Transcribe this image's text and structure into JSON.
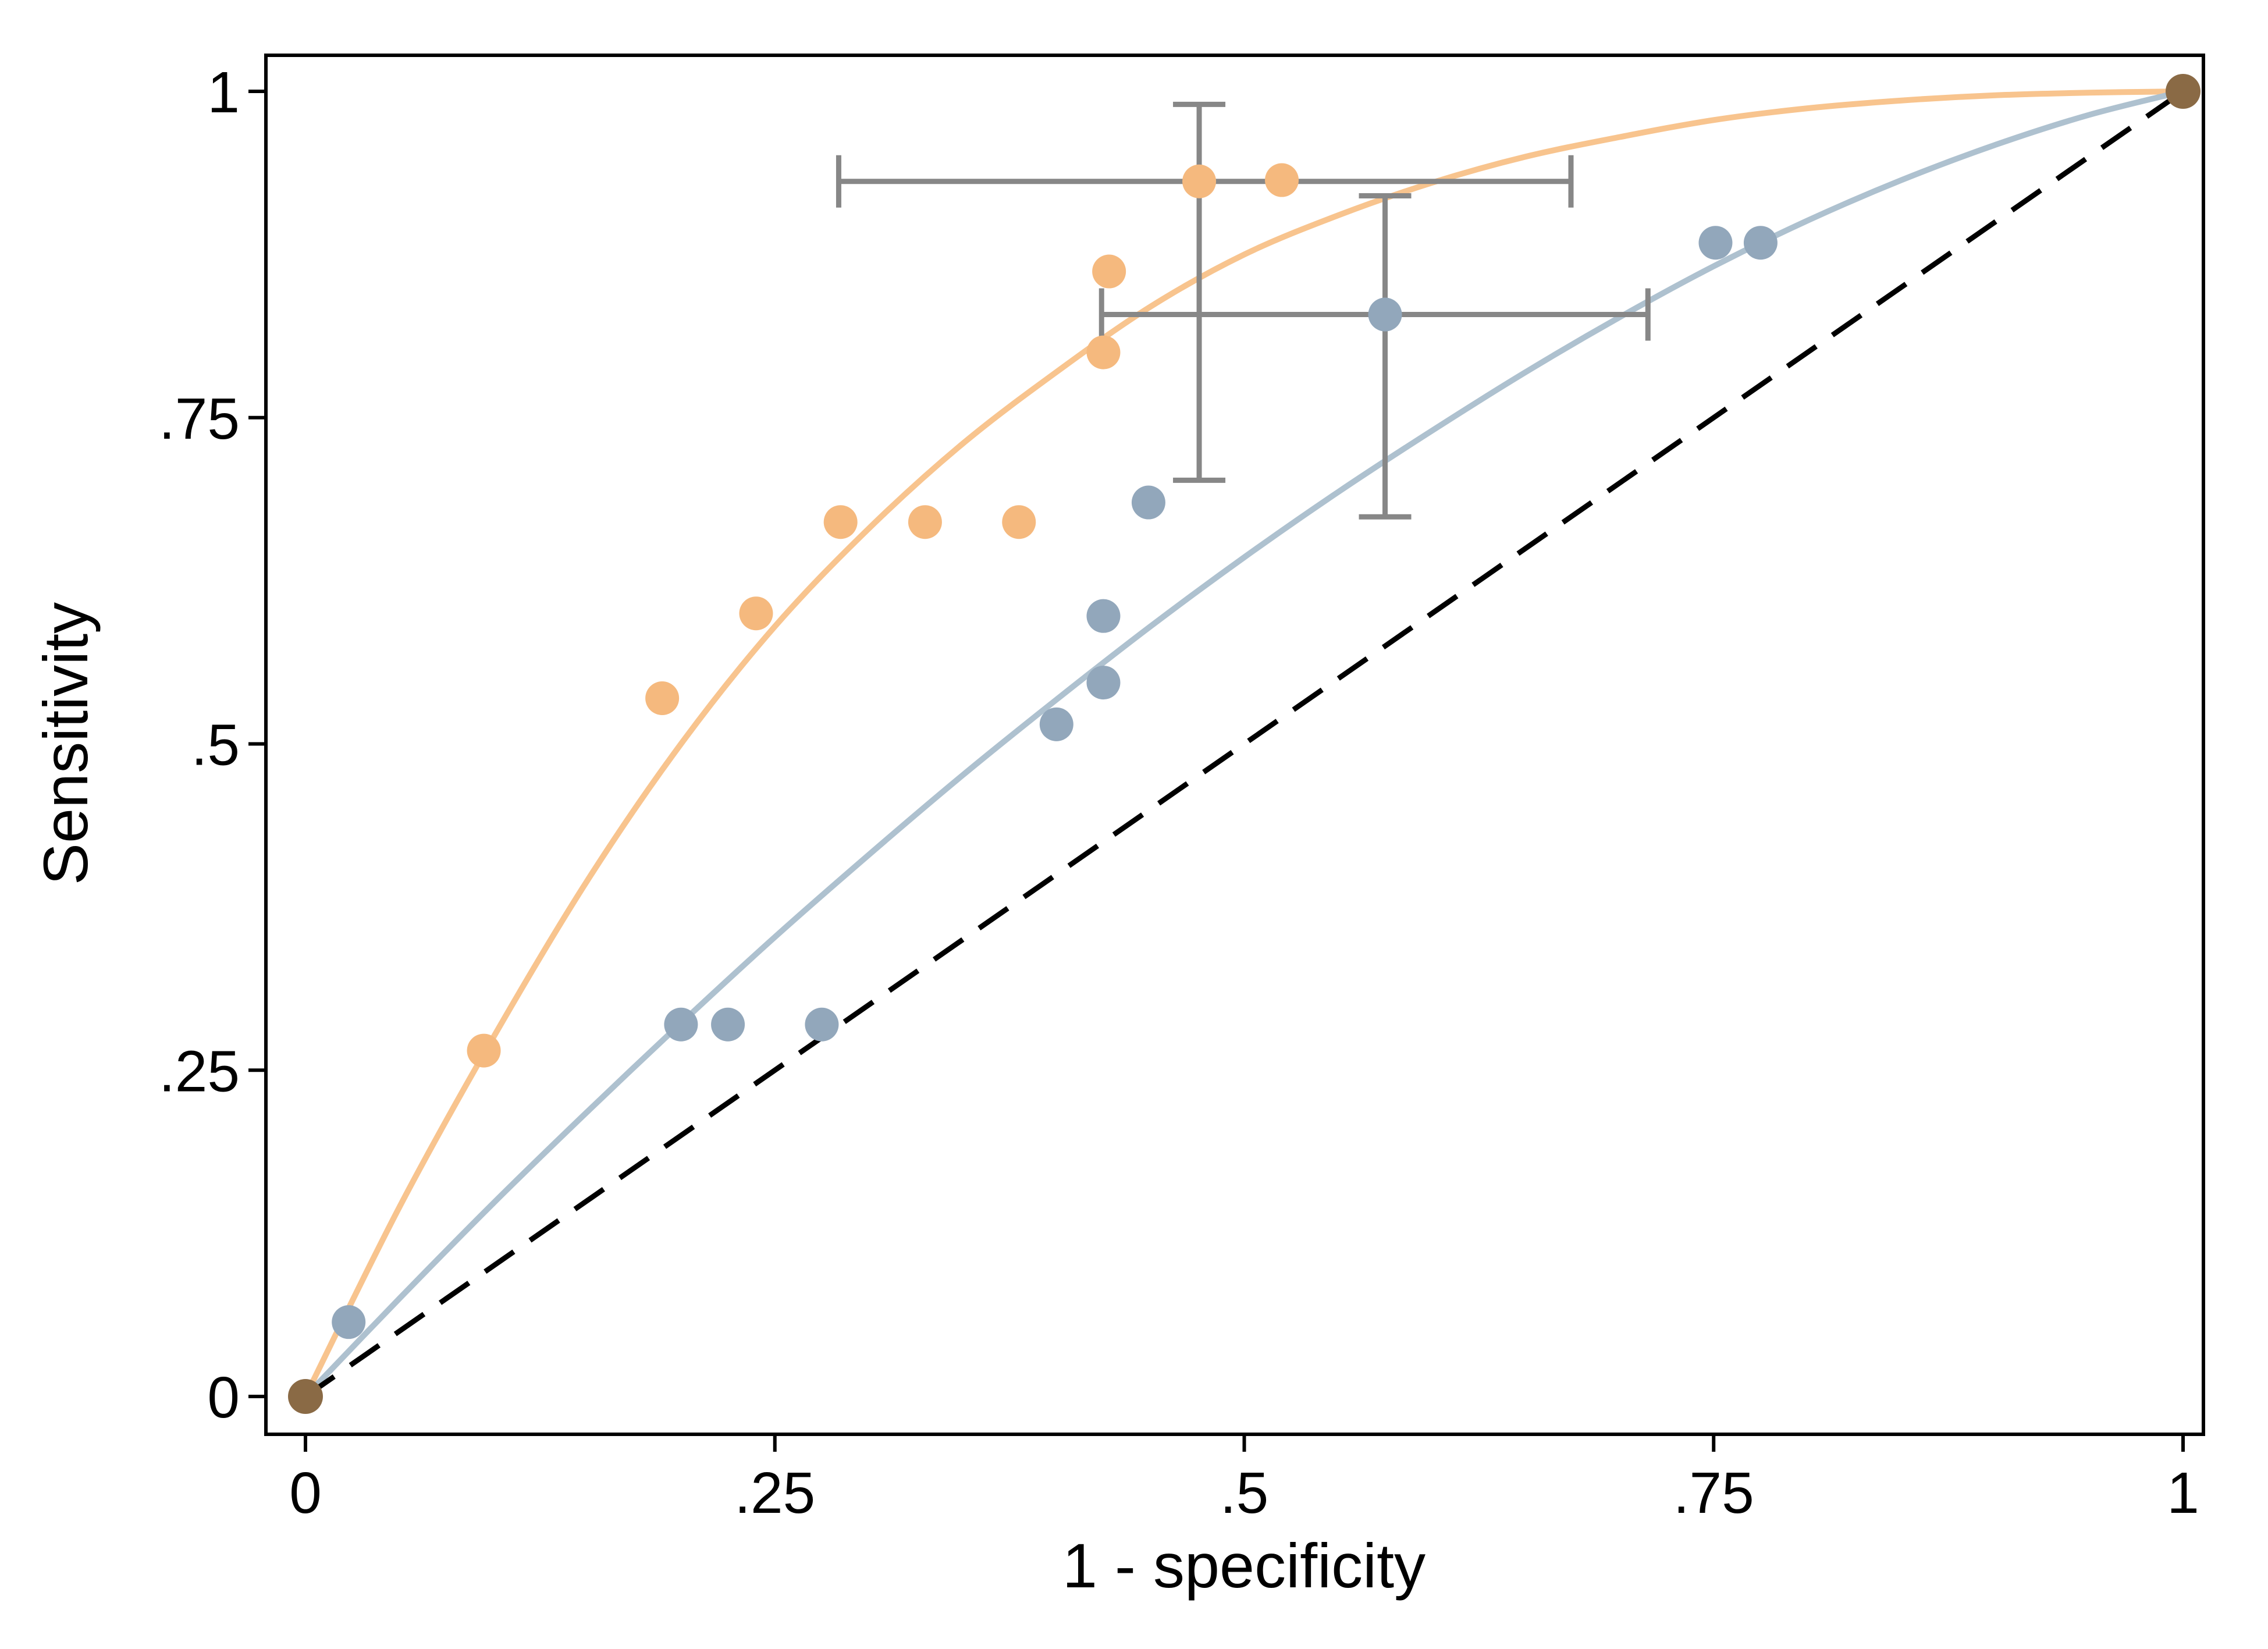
{
  "page": {
    "background": "#FFFFFF"
  },
  "chart_data": {
    "type": "scatter",
    "subtype": "roc-curves-with-summary-points",
    "title": "",
    "xlabel": "1 - specificity",
    "ylabel": "Sensitivity",
    "xlim": [
      0,
      1
    ],
    "ylim": [
      0,
      1
    ],
    "grid": false,
    "legend": "none",
    "frame_color": "#000000",
    "xticks": [
      {
        "v": 0,
        "label": "0"
      },
      {
        "v": 0.25,
        "label": ".25"
      },
      {
        "v": 0.5,
        "label": ".5"
      },
      {
        "v": 0.75,
        "label": ".75"
      },
      {
        "v": 1,
        "label": "1"
      }
    ],
    "yticks": [
      {
        "v": 0,
        "label": "0"
      },
      {
        "v": 0.25,
        "label": ".25"
      },
      {
        "v": 0.5,
        "label": ".5"
      },
      {
        "v": 0.75,
        "label": ".75"
      },
      {
        "v": 1,
        "label": "1"
      }
    ],
    "series": [
      {
        "name": "orange-roc-curve",
        "type": "curve",
        "color": "#F8C48E",
        "width": 10,
        "points": [
          [
            0,
            0
          ],
          [
            0.05,
            0.145
          ],
          [
            0.1,
            0.275
          ],
          [
            0.15,
            0.395
          ],
          [
            0.2,
            0.5
          ],
          [
            0.25,
            0.59
          ],
          [
            0.3,
            0.665
          ],
          [
            0.35,
            0.73
          ],
          [
            0.4,
            0.785
          ],
          [
            0.45,
            0.835
          ],
          [
            0.5,
            0.875
          ],
          [
            0.55,
            0.905
          ],
          [
            0.6,
            0.93
          ],
          [
            0.65,
            0.95
          ],
          [
            0.7,
            0.965
          ],
          [
            0.75,
            0.978
          ],
          [
            0.8,
            0.987
          ],
          [
            0.85,
            0.993
          ],
          [
            0.9,
            0.997
          ],
          [
            0.95,
            0.999
          ],
          [
            1,
            1
          ]
        ]
      },
      {
        "name": "blue-roc-curve",
        "type": "curve",
        "color": "#AEC1CF",
        "width": 10,
        "points": [
          [
            0,
            0
          ],
          [
            0.05,
            0.075
          ],
          [
            0.1,
            0.148
          ],
          [
            0.15,
            0.218
          ],
          [
            0.2,
            0.286
          ],
          [
            0.25,
            0.352
          ],
          [
            0.3,
            0.415
          ],
          [
            0.35,
            0.476
          ],
          [
            0.4,
            0.534
          ],
          [
            0.45,
            0.59
          ],
          [
            0.5,
            0.643
          ],
          [
            0.55,
            0.693
          ],
          [
            0.6,
            0.74
          ],
          [
            0.65,
            0.785
          ],
          [
            0.7,
            0.827
          ],
          [
            0.75,
            0.866
          ],
          [
            0.8,
            0.901
          ],
          [
            0.85,
            0.932
          ],
          [
            0.9,
            0.959
          ],
          [
            0.95,
            0.982
          ],
          [
            1,
            1
          ]
        ]
      },
      {
        "name": "reference-diagonal",
        "type": "dashed",
        "color": "#000000",
        "width": 9,
        "dash": "60 34",
        "points": [
          [
            0,
            0
          ],
          [
            1,
            1
          ]
        ]
      },
      {
        "name": "orange-study-points",
        "type": "scatter",
        "color": "#F5B97E",
        "radius": 29,
        "points": [
          [
            0.095,
            0.265
          ],
          [
            0.19,
            0.535
          ],
          [
            0.24,
            0.6
          ],
          [
            0.285,
            0.67
          ],
          [
            0.33,
            0.67
          ],
          [
            0.38,
            0.67
          ],
          [
            0.425,
            0.8
          ],
          [
            0.428,
            0.862
          ],
          [
            0.52,
            0.932
          ]
        ]
      },
      {
        "name": "blue-study-points",
        "type": "scatter",
        "color": "#92A7BB",
        "radius": 29,
        "points": [
          [
            0.023,
            0.057
          ],
          [
            0.2,
            0.285
          ],
          [
            0.225,
            0.285
          ],
          [
            0.275,
            0.285
          ],
          [
            0.4,
            0.515
          ],
          [
            0.425,
            0.547
          ],
          [
            0.425,
            0.598
          ],
          [
            0.449,
            0.685
          ],
          [
            0.751,
            0.884
          ],
          [
            0.775,
            0.884
          ]
        ]
      },
      {
        "name": "orange-summary-point",
        "type": "summary",
        "color": "#F5B97E",
        "ci_color": "#878787",
        "radius": 29,
        "center": [
          0.476,
          0.931
        ],
        "x_ci": [
          0.284,
          0.674
        ],
        "y_ci": [
          0.702,
          0.99
        ]
      },
      {
        "name": "blue-summary-point",
        "type": "summary",
        "color": "#92A7BB",
        "ci_color": "#878787",
        "radius": 29,
        "center": [
          0.575,
          0.829
        ],
        "x_ci": [
          0.424,
          0.715
        ],
        "y_ci": [
          0.674,
          0.92
        ]
      }
    ],
    "overlap_points": {
      "name": "series-overlap-corner-points",
      "color": "#8A6A45",
      "radius": 30,
      "points": [
        [
          0,
          0
        ],
        [
          1,
          1
        ]
      ]
    }
  }
}
